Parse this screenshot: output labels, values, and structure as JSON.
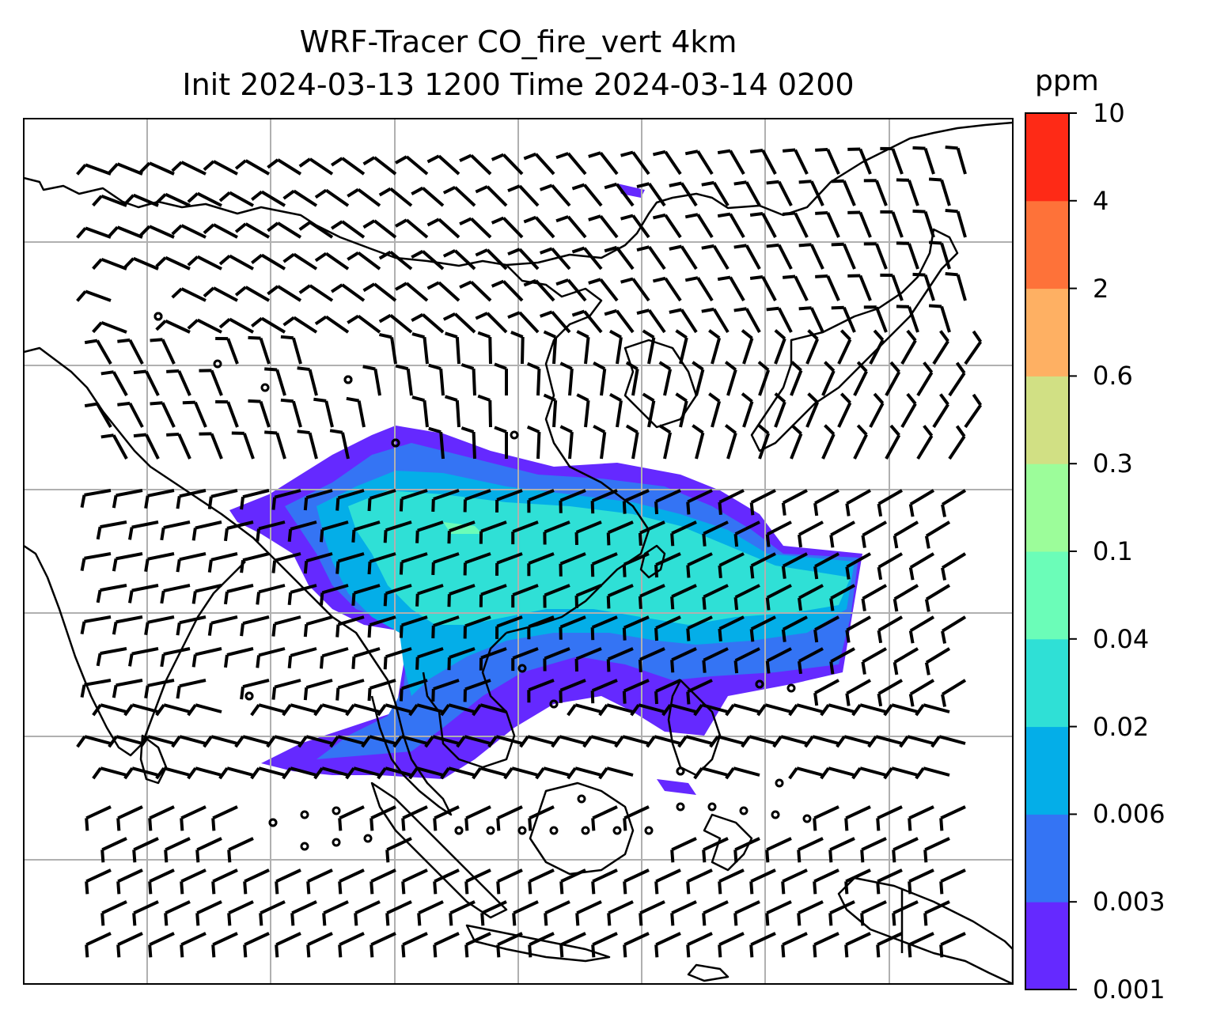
{
  "title_line1": "WRF-Tracer CO_fire_vert 4km",
  "title_line2": "Init 2024-03-13 1200 Time 2024-03-14 0200",
  "colorbar": {
    "unit": "ppm",
    "levels": [
      "0.001",
      "0.003",
      "0.006",
      "0.02",
      "0.04",
      "0.1",
      "0.3",
      "0.6",
      "2",
      "4",
      "10"
    ],
    "colors": [
      "#6529ff",
      "#3474f4",
      "#04aee8",
      "#2fe0d6",
      "#6bfdb8",
      "#9cfd9a",
      "#d1e084",
      "#feb063",
      "#fe7239",
      "#fe2a16"
    ]
  },
  "map": {
    "grid_color": "#b0b0b0",
    "coastline_color": "#000000",
    "plume_colors": {
      "outer": "#6529ff",
      "band2": "#3474f4",
      "band3": "#04aee8",
      "core": "#2fe0d6",
      "peak": "#6bfdb8"
    },
    "wind_barbs": "black",
    "calm_marker": "circle"
  }
}
